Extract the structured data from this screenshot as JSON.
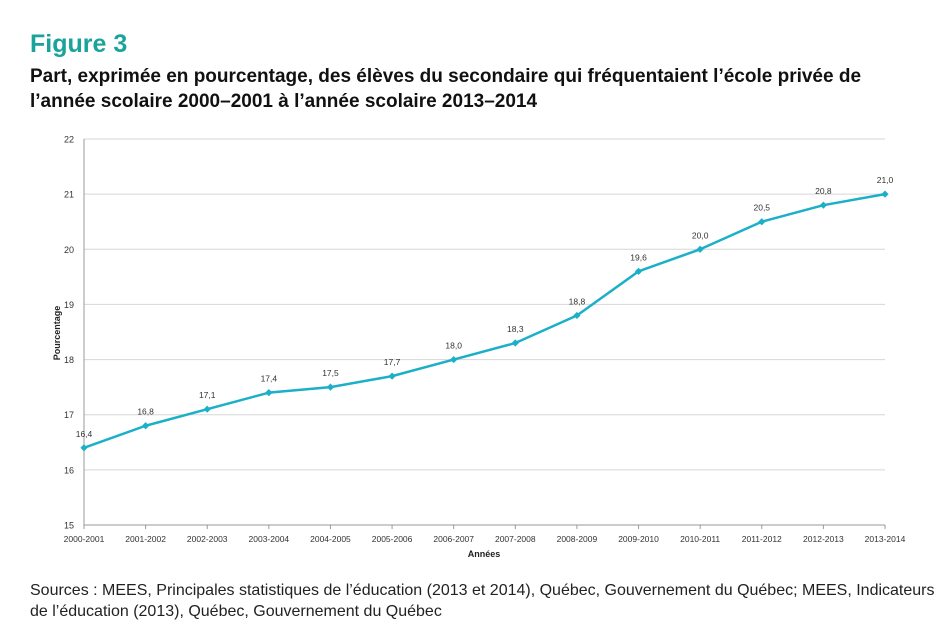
{
  "figure_label": "Figure 3",
  "source_text": "Sources : MEES, Principales statistiques de l’éducation (2013 et 2014), Québec, Gouvernement du Québec; MEES, Indicateurs de l’éducation (2013), Québec, Gouvernement du Québec",
  "colors": {
    "accent": "#1aa39a",
    "line": "#1bb0c8",
    "grid": "#d6d6d6",
    "axis": "#999999"
  },
  "chart_data": {
    "type": "line",
    "title": "Part, exprimée en pourcentage, des élèves du secondaire qui fréquentaient l’école privée de l’année scolaire 2000–2001 à l’année scolaire 2013–2014",
    "xlabel": "Années",
    "ylabel": "Pourcentage",
    "ylim": [
      15,
      22
    ],
    "yticks": [
      "15",
      "16",
      "17",
      "18",
      "19",
      "20",
      "21",
      "22"
    ],
    "grid": true,
    "categories": [
      "2000-2001",
      "2001-2002",
      "2002-2003",
      "2003-2004",
      "2004-2005",
      "2005-2006",
      "2006-2007",
      "2007-2008",
      "2008-2009",
      "2009-2010",
      "2010-2011",
      "2011-2012",
      "2012-2013",
      "2013-2014"
    ],
    "values": [
      16.4,
      16.8,
      17.1,
      17.4,
      17.5,
      17.7,
      18.0,
      18.3,
      18.8,
      19.6,
      20.0,
      20.5,
      20.8,
      21.0
    ],
    "data_labels": [
      "16,4",
      "16,8",
      "17,1",
      "17,4",
      "17,5",
      "17,7",
      "18,0",
      "18,3",
      "18,8",
      "19,6",
      "20,0",
      "20,5",
      "20,8",
      "21,0"
    ]
  }
}
